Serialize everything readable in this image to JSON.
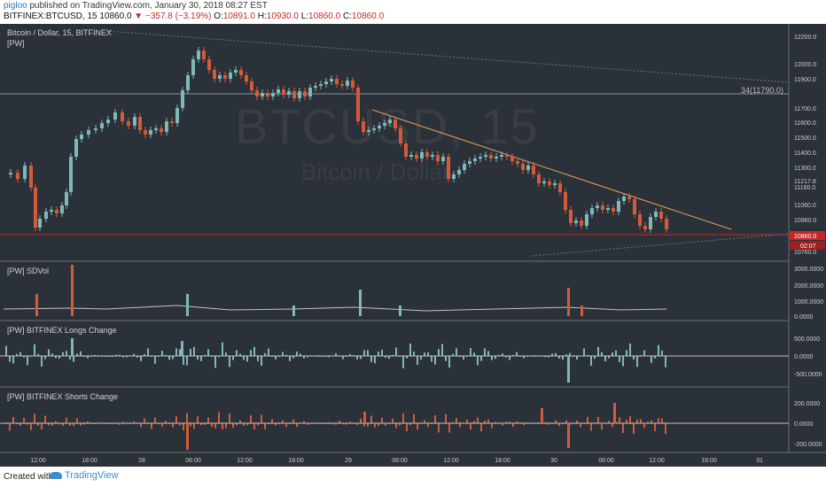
{
  "header": {
    "user": "pigloo",
    "published": "published on TradingView.com, January 30, 2018 08:27 EST",
    "symbol": "BITFINEX:BTCUSD, 15",
    "last": "10860.0",
    "change": "−357.8 (−3.19%)",
    "o_label": "O:",
    "o": "10891.0",
    "h_label": "H:",
    "h": "10930.0",
    "l_label": "L:",
    "l": "10860.0",
    "c_label": "C:",
    "c": "10860.0"
  },
  "chart": {
    "title": "Bitcoin / Dollar, 15, BITFINEX",
    "indicator": "[PW]",
    "watermark_symbol": "BTCUSD, 15",
    "watermark_name": "Bitcoin / Dollar",
    "hline_label": "34(11790.0)",
    "price_ticks": [
      "12200.0",
      "12000.0",
      "11900.0",
      "11700.0",
      "11600.0",
      "11500.0",
      "11400.0",
      "11300.0",
      "11217.8",
      "11160.0",
      "11060.0",
      "10960.0",
      "10860.0",
      "10760.0"
    ],
    "price_badge": "10860.0",
    "time_badge": "02:07",
    "time_ticks": [
      "12:00",
      "18:00",
      "28",
      "06:00",
      "12:00",
      "18:00",
      "29",
      "06:00",
      "12:00",
      "18:00",
      "30",
      "06:00",
      "12:00",
      "18:00",
      "31"
    ],
    "colors": {
      "bg": "#2b3138",
      "up": "#7fb8b8",
      "down": "#d35a3a",
      "accent": "#c62828"
    }
  },
  "panes": {
    "sdvol": {
      "label": "[PW] SDVol",
      "ticks": [
        "3000.0000",
        "2000.0000",
        "1000.0000",
        "0.0000"
      ]
    },
    "longs": {
      "label": "[PW] BITFINEX Longs Change",
      "ticks": [
        "500.0000",
        "0.0000",
        "-500.0000"
      ]
    },
    "shorts": {
      "label": "[PW] BITFINEX Shorts Change",
      "ticks": [
        "200.0000",
        "0.0000",
        "-200.0000"
      ]
    }
  },
  "footer": {
    "created": "Created with",
    "brand": "TradingView"
  }
}
